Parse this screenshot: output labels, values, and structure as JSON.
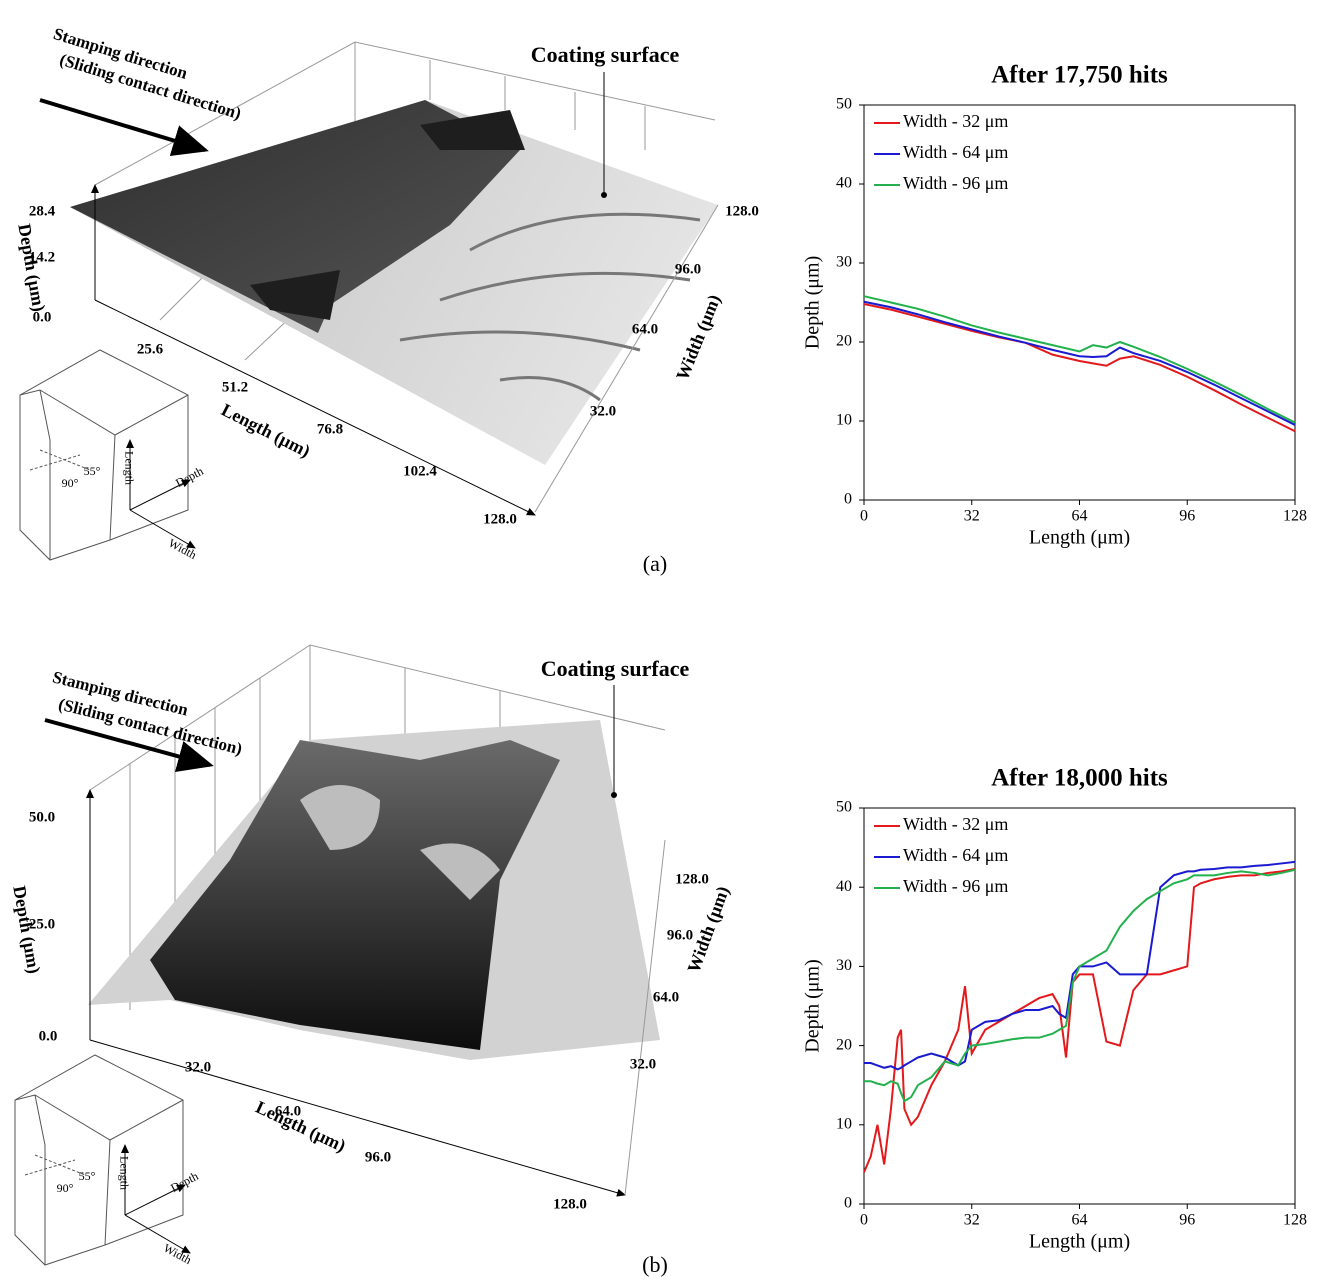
{
  "surfaces": [
    {
      "direction": "Stamping direction",
      "direction_note": "(Sliding contact direction)",
      "callout": "Coating surface",
      "depth_ticks": [
        "28.4",
        "14.2",
        "0.0"
      ],
      "depth_label": "Depth (μm)",
      "length_ticks": [
        "25.6",
        "51.2",
        "76.8",
        "102.4",
        "128.0"
      ],
      "length_label": "Length (μm)",
      "width_ticks": [
        "32.0",
        "64.0",
        "96.0",
        "128.0"
      ],
      "width_label": "Width (μm)",
      "tool_labels": [
        "Length",
        "Depth",
        "Width",
        "55°",
        "90°"
      ],
      "panel": "(a)"
    },
    {
      "direction": "Stamping direction",
      "direction_note": "(Sliding contact direction)",
      "callout": "Coating surface",
      "depth_ticks": [
        "50.0",
        "25.0",
        "0.0"
      ],
      "depth_label": "Depth (μm)",
      "length_ticks": [
        "32.0",
        "64.0",
        "96.0",
        "128.0"
      ],
      "length_label": "Length (μm)",
      "width_ticks": [
        "32.0",
        "64.0",
        "96.0",
        "128.0"
      ],
      "width_label": "Width (μm)",
      "tool_labels": [
        "Length",
        "Depth",
        "Width",
        "55°",
        "90°"
      ],
      "panel": "(b)"
    }
  ],
  "chart_data": [
    {
      "type": "line",
      "title": "After 17,750 hits",
      "x_label": "Length (μm)",
      "y_label": "Depth (μm)",
      "x": [
        0,
        8,
        16,
        24,
        32,
        40,
        48,
        56,
        64,
        68,
        72,
        76,
        80,
        88,
        96,
        104,
        112,
        120,
        128
      ],
      "series": [
        {
          "name": "Width - 32 μm",
          "color": "#e3191c",
          "values": [
            24.8,
            24.1,
            23.2,
            22.3,
            21.4,
            20.6,
            19.9,
            18.4,
            17.6,
            17.3,
            17.0,
            17.9,
            18.2,
            17.1,
            15.6,
            13.9,
            12.1,
            10.4,
            8.7
          ]
        },
        {
          "name": "Width - 64 μm",
          "color": "#1a1ad0",
          "values": [
            25.1,
            24.4,
            23.5,
            22.5,
            21.6,
            20.7,
            19.9,
            19.0,
            18.2,
            18.1,
            18.2,
            19.3,
            18.6,
            17.6,
            16.2,
            14.6,
            12.9,
            11.2,
            9.5
          ]
        },
        {
          "name": "Width - 96 μm",
          "color": "#22b14c",
          "values": [
            25.8,
            25.0,
            24.2,
            23.2,
            22.1,
            21.2,
            20.4,
            19.6,
            18.8,
            19.6,
            19.3,
            20.0,
            19.4,
            18.1,
            16.6,
            15.0,
            13.3,
            11.5,
            9.8
          ]
        }
      ],
      "xlim": [
        0,
        128
      ],
      "xticks": [
        0,
        32,
        64,
        96,
        128
      ],
      "ylim": [
        0,
        50
      ],
      "yticks": [
        0,
        10,
        20,
        30,
        40,
        50
      ],
      "grid": false,
      "legend": "upper-left"
    },
    {
      "type": "line",
      "title": "After 18,000 hits",
      "x_label": "Length (μm)",
      "y_label": "Depth (μm)",
      "x": [
        0,
        2,
        4,
        6,
        8,
        10,
        11,
        12,
        14,
        16,
        20,
        24,
        28,
        30,
        32,
        36,
        40,
        44,
        48,
        52,
        56,
        58,
        60,
        62,
        64,
        68,
        72,
        76,
        80,
        84,
        88,
        92,
        96,
        98,
        100,
        104,
        108,
        112,
        116,
        120,
        124,
        128
      ],
      "series": [
        {
          "name": "Width - 32 μm",
          "color": "#e3191c",
          "values": [
            4,
            6,
            10,
            5,
            12,
            21,
            22,
            12,
            10,
            11,
            15,
            18,
            22,
            27.5,
            19,
            22,
            23,
            24,
            25,
            26,
            26.5,
            25,
            18.5,
            28,
            29,
            29,
            20.5,
            20,
            27,
            29,
            29,
            29.5,
            30,
            40,
            40.5,
            41,
            41.3,
            41.5,
            41.5,
            41.8,
            42,
            42.3
          ]
        },
        {
          "name": "Width - 64 μm",
          "color": "#1a1ad0",
          "values": [
            17.8,
            17.8,
            17.5,
            17.2,
            17.4,
            17,
            17.2,
            17.5,
            18,
            18.5,
            19,
            18.5,
            17.5,
            18,
            22,
            23,
            23.2,
            24,
            24.5,
            24.5,
            25,
            24,
            23.5,
            29,
            30,
            30,
            30.5,
            29,
            29,
            29,
            40,
            41.5,
            42,
            42,
            42.2,
            42.3,
            42.5,
            42.5,
            42.7,
            42.8,
            43,
            43.2
          ]
        },
        {
          "name": "Width - 96 μm",
          "color": "#22b14c",
          "values": [
            15.5,
            15.5,
            15.2,
            15,
            15.5,
            15.2,
            14,
            13,
            13.5,
            15,
            16,
            18,
            17.5,
            19,
            20,
            20.2,
            20.5,
            20.8,
            21,
            21,
            21.5,
            22,
            22.5,
            28,
            30,
            31,
            32,
            35,
            37,
            38.5,
            39.5,
            40.5,
            41,
            41.5,
            41.5,
            41.5,
            41.8,
            42,
            41.8,
            41.5,
            41.8,
            42.2
          ]
        }
      ],
      "xlim": [
        0,
        128
      ],
      "xticks": [
        0,
        32,
        64,
        96,
        128
      ],
      "ylim": [
        0,
        50
      ],
      "yticks": [
        0,
        10,
        20,
        30,
        40,
        50
      ],
      "grid": false,
      "legend": "upper-left"
    }
  ]
}
